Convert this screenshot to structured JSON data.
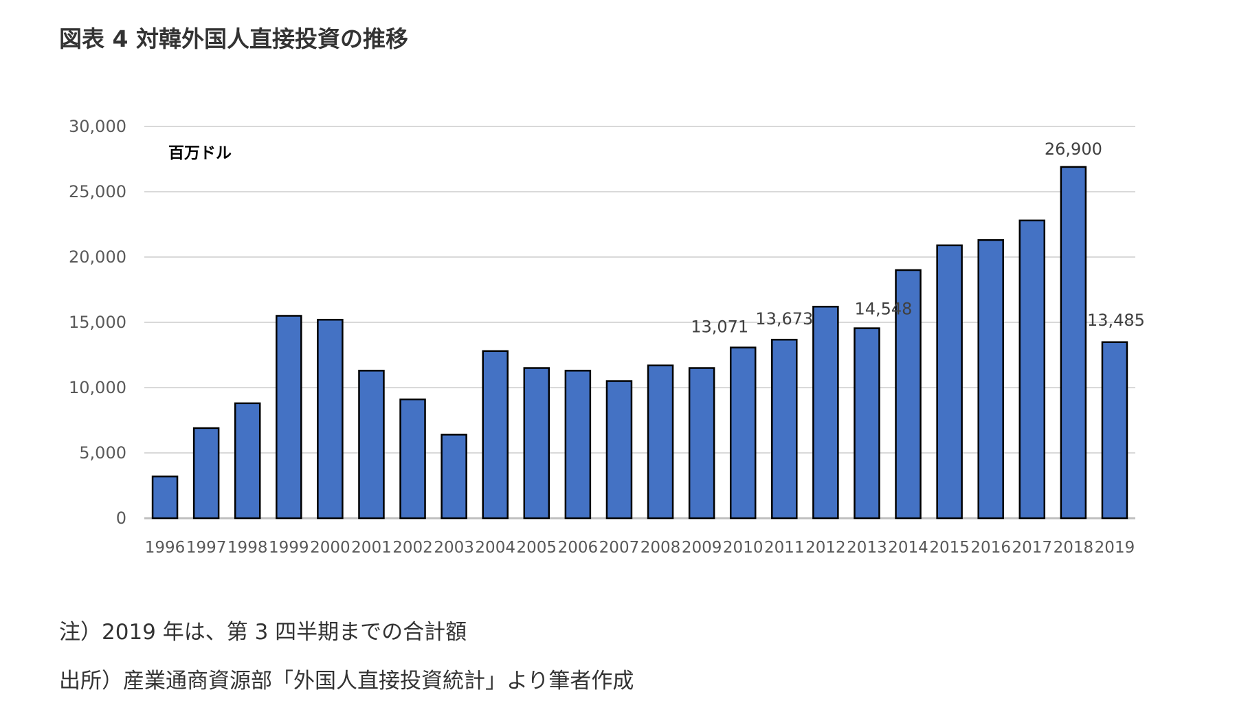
{
  "figure": {
    "title": "図表 4 対韓外国人直接投資の推移"
  },
  "chart_data": {
    "type": "bar",
    "title": "図表 4 対韓外国人直接投資の推移",
    "unit_label": "百万ドル",
    "xlabel": "",
    "ylabel": "",
    "ylim": [
      0,
      30000
    ],
    "yticks": [
      {
        "value": 0,
        "label": "0"
      },
      {
        "value": 5000,
        "label": "5,000"
      },
      {
        "value": 10000,
        "label": "10,000"
      },
      {
        "value": 15000,
        "label": "15,000"
      },
      {
        "value": 20000,
        "label": "20,000"
      },
      {
        "value": 25000,
        "label": "25,000"
      },
      {
        "value": 30000,
        "label": "30,000"
      }
    ],
    "grid": true,
    "legend": "none",
    "colors": {
      "bar_fill": "#4472C4",
      "bar_stroke": "#000000",
      "grid": "#D9D9D9",
      "axis": "#BFBFBF",
      "tick_text": "#595959"
    },
    "categories": [
      "1996",
      "1997",
      "1998",
      "1999",
      "2000",
      "2001",
      "2002",
      "2003",
      "2004",
      "2005",
      "2006",
      "2007",
      "2008",
      "2009",
      "2010",
      "2011",
      "2012",
      "2013",
      "2014",
      "2015",
      "2016",
      "2017",
      "2018",
      "2019"
    ],
    "values": [
      3200,
      6900,
      8800,
      15500,
      15200,
      11300,
      9100,
      6400,
      12800,
      11500,
      11300,
      10500,
      11700,
      11500,
      13071,
      13673,
      16200,
      14548,
      19000,
      20900,
      21300,
      22800,
      26900,
      13485
    ],
    "data_labels": [
      {
        "category": "2010",
        "label": "13,071"
      },
      {
        "category": "2011",
        "label": "13,673"
      },
      {
        "category": "2013",
        "label": "14,548"
      },
      {
        "category": "2018",
        "label": "26,900"
      },
      {
        "category": "2019",
        "label": "13,485"
      }
    ]
  },
  "notes": {
    "note": "注）2019 年は、第 3 四半期までの合計額",
    "source": "出所）産業通商資源部「外国人直接投資統計」より筆者作成"
  }
}
